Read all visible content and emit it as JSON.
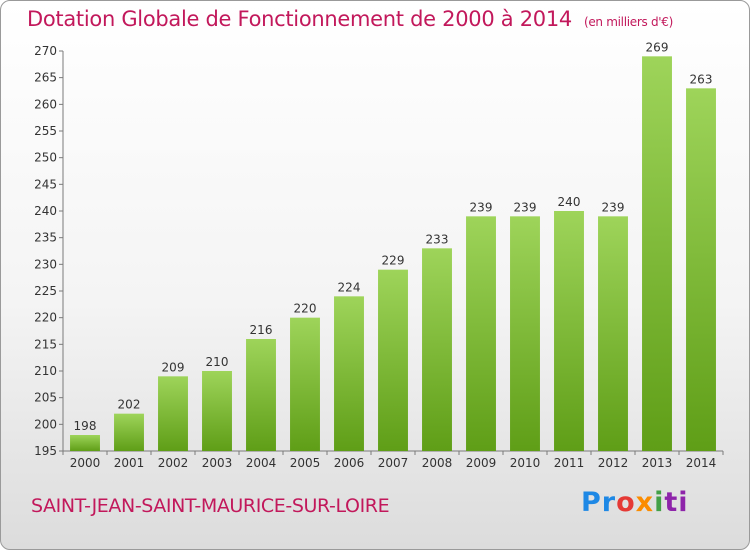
{
  "header": {
    "title": "Dotation Globale de Fonctionnement de 2000 à 2014",
    "unit": "(en milliers d'€)"
  },
  "footer": {
    "commune": "SAINT-JEAN-SAINT-MAURICE-SUR-LOIRE",
    "logo_parts": [
      "Pr",
      "o",
      "x",
      "i",
      "ti"
    ]
  },
  "colors": {
    "accent": "#c2185b",
    "bar_top": "#9ed45a",
    "bar_bottom": "#5f9e17",
    "axis": "#7a7a7a"
  },
  "chart_data": {
    "type": "bar",
    "title": "Dotation Globale de Fonctionnement de 2000 à 2014",
    "ylabel": "(en milliers d'€)",
    "xlabel": "",
    "categories": [
      "2000",
      "2001",
      "2002",
      "2003",
      "2004",
      "2005",
      "2006",
      "2007",
      "2008",
      "2009",
      "2010",
      "2011",
      "2012",
      "2013",
      "2014"
    ],
    "values": [
      198,
      202,
      209,
      210,
      216,
      220,
      224,
      229,
      233,
      239,
      239,
      240,
      239,
      269,
      263
    ],
    "ylim": [
      195,
      270
    ],
    "yticks": [
      195,
      200,
      205,
      210,
      215,
      220,
      225,
      230,
      235,
      240,
      245,
      250,
      255,
      260,
      265,
      270
    ],
    "grid": false,
    "legend": "none"
  }
}
